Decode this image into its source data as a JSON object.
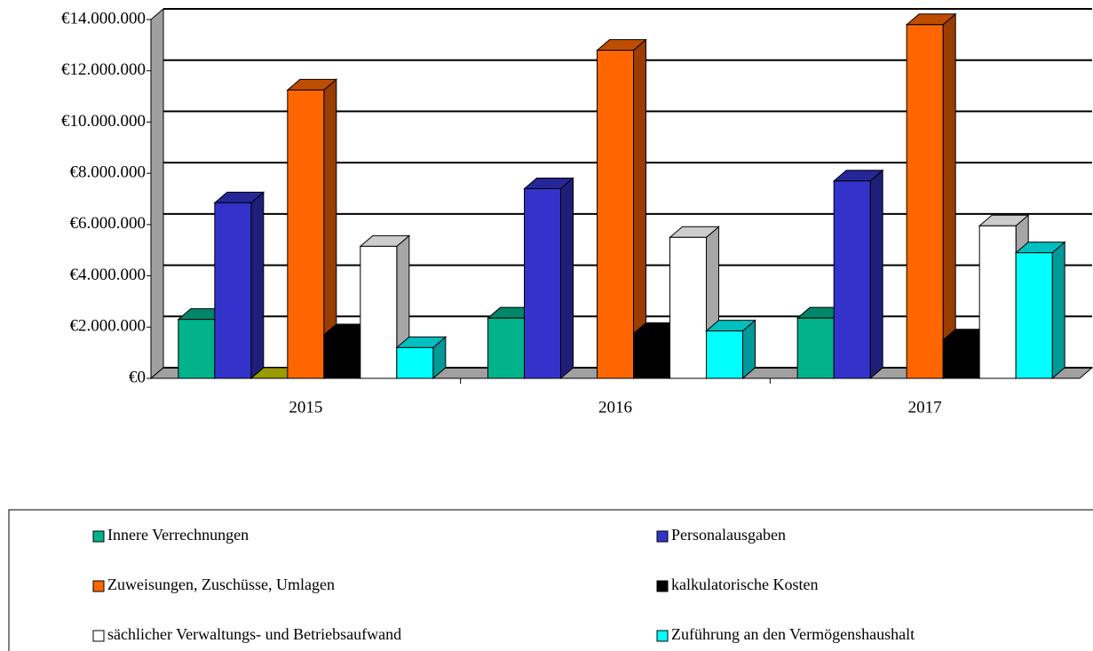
{
  "chart_data": {
    "type": "bar3d",
    "categories": [
      "2015",
      "2016",
      "2017"
    ],
    "series": [
      {
        "name": "Innere Verrechnungen",
        "color": "#00b38a",
        "values": [
          2300000,
          2350000,
          2350000
        ]
      },
      {
        "name": "Personalausgaben",
        "color": "#3333cc",
        "values": [
          6850000,
          7400000,
          7700000
        ]
      },
      {
        "color": "#cccc00",
        "values": [
          0,
          null,
          null
        ]
      },
      {
        "name": "Zuweisungen, Zuschüsse, Umlagen",
        "color": "#ff6600",
        "values": [
          11250000,
          12800000,
          13800000
        ]
      },
      {
        "name": "kalkulatorische Kosten",
        "color": "#000000",
        "values": [
          1700000,
          1750000,
          1500000
        ]
      },
      {
        "name": "sächlicher Verwaltungs- und Betriebsaufwand",
        "color": "#ffffff",
        "values": [
          5150000,
          5500000,
          5950000
        ]
      },
      {
        "name": "Zuführung an den Vermögenshaushalt",
        "color": "#00ffff",
        "values": [
          1200000,
          1850000,
          4900000
        ]
      }
    ],
    "ylim": [
      0,
      14000000
    ],
    "yticks": [
      {
        "value": 0,
        "label": "€0"
      },
      {
        "value": 2000000,
        "label": "€2.000.000"
      },
      {
        "value": 4000000,
        "label": "€4.000.000"
      },
      {
        "value": 6000000,
        "label": "€6.000.000"
      },
      {
        "value": 8000000,
        "label": "€8.000.000"
      },
      {
        "value": 10000000,
        "label": "€10.000.000"
      },
      {
        "value": 12000000,
        "label": "€12.000.000"
      },
      {
        "value": 14000000,
        "label": "€14.000.000"
      }
    ],
    "grid": true,
    "legend": "bottom"
  }
}
